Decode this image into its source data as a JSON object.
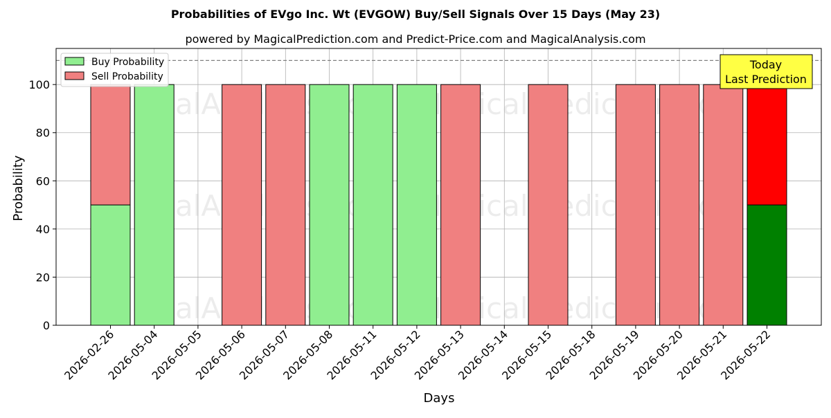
{
  "chart_data": {
    "type": "bar",
    "stacked": true,
    "title": "Probabilities of EVgo Inc. Wt (EVGOW) Buy/Sell Signals Over 15 Days (May 23)",
    "subtitle": "powered by MagicalPrediction.com and Predict-Price.com and MagicalAnalysis.com",
    "xlabel": "Days",
    "ylabel": "Probability",
    "ylim": [
      0,
      115
    ],
    "yticks": [
      0,
      20,
      40,
      60,
      80,
      100
    ],
    "reference_line": 110,
    "grid": true,
    "legend_position": "top-left",
    "categories": [
      "2026-02-26",
      "2026-05-04",
      "2026-05-05",
      "2026-05-06",
      "2026-05-07",
      "2026-05-08",
      "2026-05-11",
      "2026-05-12",
      "2026-05-13",
      "2026-05-14",
      "2026-05-15",
      "2026-05-18",
      "2026-05-19",
      "2026-05-20",
      "2026-05-21",
      "2026-05-22"
    ],
    "series": [
      {
        "name": "Buy Probability",
        "color": "#90EE90",
        "highlight_color": "#008000",
        "values": [
          50,
          100,
          0,
          0,
          0,
          100,
          100,
          100,
          0,
          0,
          0,
          0,
          0,
          0,
          0,
          50
        ]
      },
      {
        "name": "Sell Probability",
        "color": "#F08080",
        "highlight_color": "#FF0000",
        "values": [
          50,
          0,
          0,
          100,
          100,
          0,
          0,
          0,
          100,
          0,
          100,
          0,
          100,
          100,
          100,
          50
        ]
      }
    ],
    "highlight_index": 15,
    "annotation": {
      "line1": "Today",
      "line2": "Last Prediction",
      "color": "#FFFF44"
    },
    "watermarks": [
      "MagicalAnalysis.com",
      "MagicalPrediction.com"
    ]
  }
}
